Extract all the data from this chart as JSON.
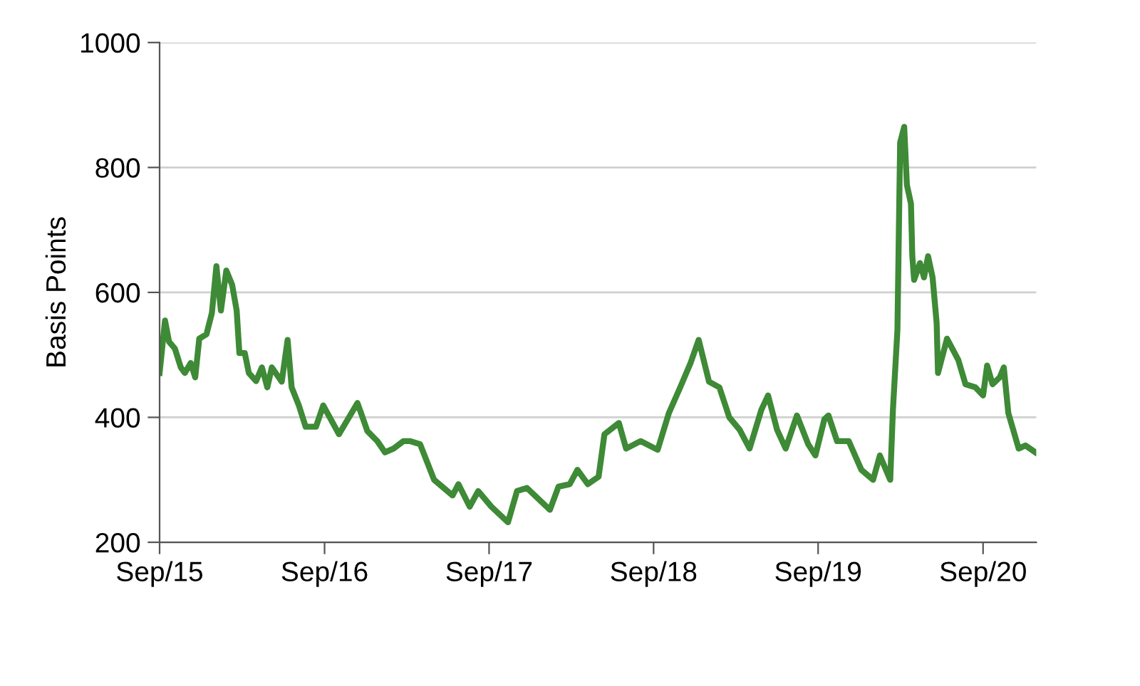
{
  "chart_data": {
    "type": "line",
    "ylabel": "Basis Points",
    "x": [
      "2015-09-01",
      "2015-09-13",
      "2015-09-22",
      "2015-10-05",
      "2015-10-18",
      "2015-10-27",
      "2015-11-09",
      "2015-11-19",
      "2015-11-28",
      "2015-12-14",
      "2015-12-26",
      "2016-01-05",
      "2016-01-15",
      "2016-01-27",
      "2016-02-09",
      "2016-02-19",
      "2016-02-25",
      "2016-03-08",
      "2016-03-17",
      "2016-04-02",
      "2016-04-15",
      "2016-04-27",
      "2016-05-07",
      "2016-05-29",
      "2016-06-11",
      "2016-06-20",
      "2016-07-06",
      "2016-07-21",
      "2016-08-13",
      "2016-08-29",
      "2016-10-03",
      "2016-11-13",
      "2016-12-05",
      "2016-12-27",
      "2017-01-13",
      "2017-02-01",
      "2017-02-23",
      "2017-03-09",
      "2017-04-01",
      "2017-05-02",
      "2017-06-12",
      "2017-06-25",
      "2017-07-20",
      "2017-08-08",
      "2017-09-06",
      "2017-10-13",
      "2017-11-02",
      "2017-11-24",
      "2018-01-14",
      "2018-02-02",
      "2018-02-27",
      "2018-03-16",
      "2018-04-08",
      "2018-05-02",
      "2018-05-15",
      "2018-06-16",
      "2018-07-02",
      "2018-08-03",
      "2018-09-10",
      "2018-10-05",
      "2018-10-30",
      "2018-11-22",
      "2018-12-10",
      "2019-01-02",
      "2019-01-25",
      "2019-02-16",
      "2019-03-11",
      "2019-04-02",
      "2019-04-28",
      "2019-05-13",
      "2019-06-02",
      "2019-06-21",
      "2019-07-16",
      "2019-08-10",
      "2019-08-26",
      "2019-09-15",
      "2019-09-24",
      "2019-10-13",
      "2019-11-08",
      "2019-12-06",
      "2020-01-01",
      "2020-01-16",
      "2020-02-08",
      "2020-02-14",
      "2020-02-24",
      "2020-03-01",
      "2020-03-10",
      "2020-03-16",
      "2020-03-25",
      "2020-03-28",
      "2020-04-01",
      "2020-04-14",
      "2020-04-23",
      "2020-05-02",
      "2020-05-12",
      "2020-05-21",
      "2020-05-24",
      "2020-06-13",
      "2020-07-08",
      "2020-07-24",
      "2020-08-15",
      "2020-09-01",
      "2020-09-10",
      "2020-09-22",
      "2020-10-08",
      "2020-10-17",
      "2020-10-27",
      "2020-11-19",
      "2020-12-04",
      "2020-12-26"
    ],
    "series": [
      {
        "color": "#3e8a36",
        "values": [
          471,
          555,
          521,
          510,
          480,
          471,
          487,
          464,
          526,
          533,
          567,
          642,
          571,
          635,
          612,
          571,
          503,
          503,
          471,
          458,
          480,
          448,
          480,
          457,
          524,
          448,
          419,
          385,
          385,
          419,
          373,
          423,
          378,
          362,
          344,
          350,
          362,
          362,
          357,
          300,
          275,
          293,
          257,
          282,
          257,
          232,
          282,
          287,
          252,
          289,
          293,
          316,
          293,
          305,
          373,
          391,
          350,
          362,
          348,
          407,
          448,
          487,
          524,
          457,
          448,
          400,
          380,
          350,
          412,
          435,
          380,
          350,
          403,
          357,
          339,
          397,
          403,
          362,
          362,
          316,
          300,
          339,
          300,
          412,
          540,
          840,
          865,
          772,
          742,
          658,
          620,
          647,
          624,
          658,
          624,
          551,
          471,
          526,
          492,
          453,
          448,
          435,
          483,
          453,
          464,
          480,
          407,
          350,
          355,
          344
        ]
      }
    ],
    "xlim": [
      "2015-09-01",
      "2020-12-28"
    ],
    "xticks": [
      {
        "value": "2015-09-01",
        "label": "Sep/15"
      },
      {
        "value": "2016-09-01",
        "label": "Sep/16"
      },
      {
        "value": "2017-09-01",
        "label": "Sep/17"
      },
      {
        "value": "2018-09-01",
        "label": "Sep/18"
      },
      {
        "value": "2019-09-01",
        "label": "Sep/19"
      },
      {
        "value": "2020-09-01",
        "label": "Sep/20"
      }
    ],
    "ylim": [
      200,
      1000
    ],
    "yticks": [
      200,
      400,
      600,
      800,
      1000
    ],
    "grid": "y",
    "legend": false,
    "marker": "none",
    "line_style": "solid"
  }
}
